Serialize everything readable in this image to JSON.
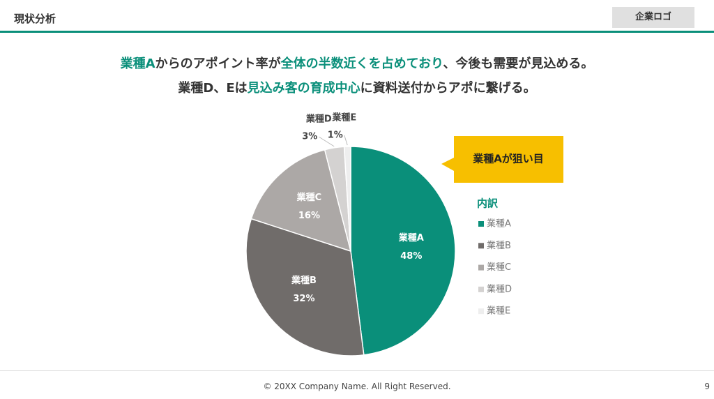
{
  "header": {
    "title": "現状分析",
    "logo": "企業ロゴ"
  },
  "message": [
    [
      {
        "text": "業種A",
        "highlight": true
      },
      {
        "text": "からのアポイント率が",
        "highlight": false
      },
      {
        "text": "全体の半数近くを占めており",
        "highlight": true
      },
      {
        "text": "、今後も需要が見込める。",
        "highlight": false
      }
    ],
    [
      {
        "text": "業種D、Eは",
        "highlight": false
      },
      {
        "text": "見込み客の育成中心",
        "highlight": true
      },
      {
        "text": "に資料送付からアポに繋げる。",
        "highlight": false
      }
    ]
  ],
  "callout": "業種Aが狙い目",
  "chart_data": {
    "type": "pie",
    "legend_title": "内訳",
    "categories": [
      "業種A",
      "業種B",
      "業種C",
      "業種D",
      "業種E"
    ],
    "values": [
      48,
      32,
      16,
      3,
      1
    ],
    "value_labels": [
      "48%",
      "32%",
      "16%",
      "3%",
      "1%"
    ],
    "colors": [
      "#0a8f7a",
      "#706c6a",
      "#aca8a6",
      "#d4d2d1",
      "#eeeeee"
    ],
    "legend": "right"
  },
  "footer": {
    "copyright": "© 20XX Company Name. All Right Reserved.",
    "page": "9"
  }
}
